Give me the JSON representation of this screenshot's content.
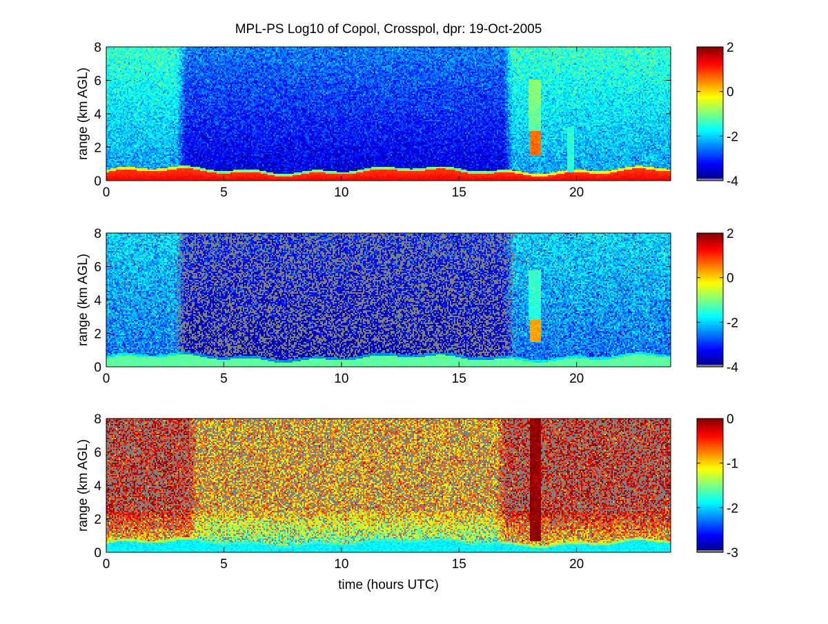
{
  "title": "MPL-PS Log10 of Copol, Crosspol, dpr: 19-Oct-2005",
  "colors": {
    "no_data": "#808080",
    "colormap": "jet",
    "axis": "#000000",
    "background": "#ffffff"
  },
  "chart_data": [
    {
      "type": "heatmap",
      "quantity": "log10 copol",
      "xlabel": "",
      "ylabel": "range (km AGL)",
      "xlim": [
        0,
        24
      ],
      "ylim": [
        0,
        8
      ],
      "xticks": [
        "0",
        "5",
        "10",
        "15",
        "20"
      ],
      "yticks": [
        "0",
        "2",
        "4",
        "6",
        "8"
      ],
      "colorbar": {
        "min": -4,
        "max": 2,
        "ticks": [
          "2",
          "0",
          "-2",
          "-4"
        ]
      },
      "features": {
        "surface_layer": {
          "top_km": 0.5,
          "value": 1.3
        },
        "background": {
          "night_value": -1.9,
          "day_value": -3.0,
          "day_start_h": 3.0,
          "day_end_h": 17.3
        },
        "cloud": {
          "t_start_h": 18.0,
          "t_end_h": 18.5,
          "base_km": 1.5,
          "top_km": 3.0,
          "value": 0.6
        },
        "streak": {
          "t_start_h": 19.6,
          "t_end_h": 19.9,
          "top_km": 3.2,
          "value": -1.5
        }
      }
    },
    {
      "type": "heatmap",
      "quantity": "log10 crosspol",
      "xlabel": "",
      "ylabel": "range (km AGL)",
      "xlim": [
        0,
        24
      ],
      "ylim": [
        0,
        8
      ],
      "xticks": [
        "0",
        "5",
        "10",
        "15",
        "20"
      ],
      "yticks": [
        "0",
        "2",
        "4",
        "6",
        "8"
      ],
      "colorbar": {
        "min": -4,
        "max": 2,
        "ticks": [
          "2",
          "0",
          "-2",
          "-4"
        ]
      },
      "features": {
        "surface_layer": {
          "top_km": 0.5,
          "value": -1.2
        },
        "background": {
          "night_value": -2.3,
          "day_value": -3.4,
          "day_start_h": 3.0,
          "day_end_h": 17.3
        },
        "cloud": {
          "t_start_h": 18.0,
          "t_end_h": 18.5,
          "base_km": 1.5,
          "top_km": 2.8,
          "value": 0.3
        }
      }
    },
    {
      "type": "heatmap",
      "quantity": "log10 depolarization ratio",
      "xlabel": "time (hours UTC)",
      "ylabel": "range (km AGL)",
      "xlim": [
        0,
        24
      ],
      "ylim": [
        0,
        8
      ],
      "xticks": [
        "0",
        "5",
        "10",
        "15",
        "20"
      ],
      "yticks": [
        "0",
        "2",
        "4",
        "6",
        "8"
      ],
      "colorbar": {
        "min": -3,
        "max": 0,
        "ticks": [
          "0",
          "-1",
          "-2",
          "-3"
        ]
      },
      "features": {
        "surface_layer": {
          "top_km": 0.5,
          "value": -1.9
        },
        "background": {
          "night_value": -0.3,
          "day_value": -0.9,
          "day_start_h": 3.5,
          "day_end_h": 17.0
        },
        "cloud": {
          "t_start_h": 18.0,
          "t_end_h": 18.5,
          "base_km": 0.7,
          "top_km": 8.0,
          "value": -0.05
        }
      }
    }
  ]
}
